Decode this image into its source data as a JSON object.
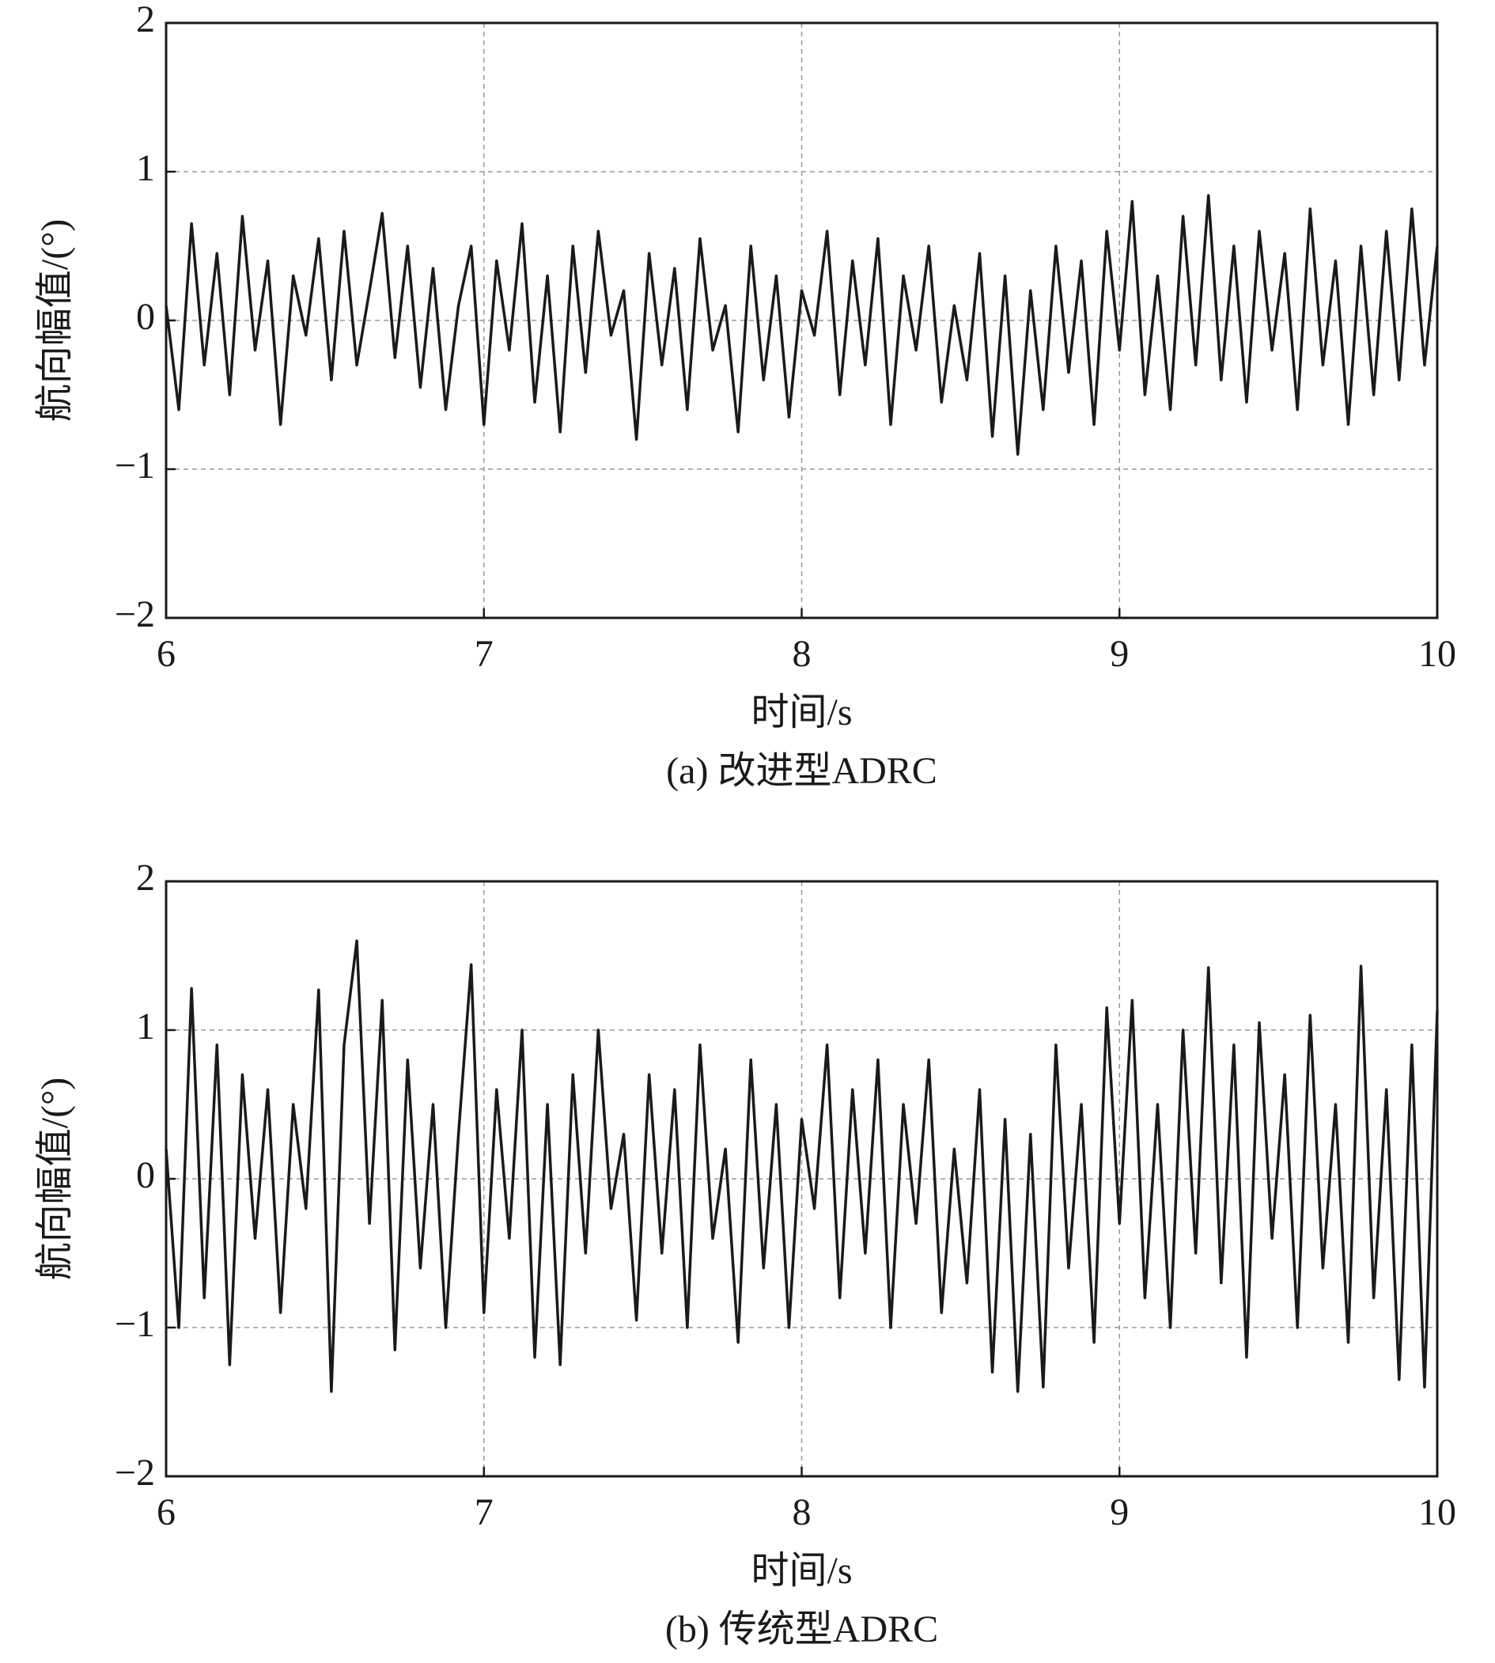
{
  "chart_data": [
    {
      "type": "line",
      "title": "(a) 改进型ADRC",
      "x_label": "时间/s",
      "y_label": "航向幅值/(°)",
      "color": "#1a1a1a",
      "grid": true,
      "xlim": [
        6,
        10
      ],
      "xticks": [
        6,
        7,
        8,
        9,
        10
      ],
      "ylim": [
        -2,
        2
      ],
      "yticks": [
        {
          "value": -2,
          "label": "−2"
        },
        {
          "value": -1,
          "label": "−1"
        },
        0,
        1,
        2
      ],
      "x": [
        6,
        6.04,
        6.08,
        6.12,
        6.16,
        6.2,
        6.24,
        6.28,
        6.32,
        6.36,
        6.4,
        6.44,
        6.48,
        6.52,
        6.56,
        6.6,
        6.64,
        6.68,
        6.72,
        6.76,
        6.8,
        6.84,
        6.88,
        6.92,
        6.96,
        7,
        7.04,
        7.08,
        7.12,
        7.16,
        7.2,
        7.24,
        7.28,
        7.32,
        7.36,
        7.4,
        7.44,
        7.48,
        7.52,
        7.56,
        7.6,
        7.64,
        7.68,
        7.72,
        7.76,
        7.8,
        7.84,
        7.88,
        7.92,
        7.96,
        8,
        8.04,
        8.08,
        8.12,
        8.16,
        8.2,
        8.24,
        8.28,
        8.32,
        8.36,
        8.4,
        8.44,
        8.48,
        8.52,
        8.56,
        8.6,
        8.64,
        8.68,
        8.72,
        8.76,
        8.8,
        8.84,
        8.88,
        8.92,
        8.96,
        9,
        9.04,
        9.08,
        9.12,
        9.16,
        9.2,
        9.24,
        9.28,
        9.32,
        9.36,
        9.4,
        9.44,
        9.48,
        9.52,
        9.56,
        9.6,
        9.64,
        9.68,
        9.72,
        9.76,
        9.8,
        9.84,
        9.88,
        9.92,
        9.96,
        10
      ],
      "values": [
        0.1,
        -0.6,
        0.65,
        -0.3,
        0.45,
        -0.5,
        0.7,
        -0.2,
        0.4,
        -0.7,
        0.3,
        -0.1,
        0.55,
        -0.4,
        0.6,
        -0.3,
        0.2,
        0.72,
        -0.25,
        0.5,
        -0.45,
        0.35,
        -0.6,
        0.1,
        0.5,
        -0.7,
        0.4,
        -0.2,
        0.65,
        -0.55,
        0.3,
        -0.75,
        0.5,
        -0.35,
        0.6,
        -0.1,
        0.2,
        -0.8,
        0.45,
        -0.3,
        0.35,
        -0.6,
        0.55,
        -0.2,
        0.1,
        -0.75,
        0.5,
        -0.4,
        0.3,
        -0.65,
        0.2,
        -0.1,
        0.6,
        -0.5,
        0.4,
        -0.3,
        0.55,
        -0.7,
        0.3,
        -0.2,
        0.5,
        -0.55,
        0.1,
        -0.4,
        0.45,
        -0.78,
        0.3,
        -0.9,
        0.2,
        -0.6,
        0.5,
        -0.35,
        0.4,
        -0.7,
        0.6,
        -0.2,
        0.8,
        -0.5,
        0.3,
        -0.6,
        0.7,
        -0.3,
        0.84,
        -0.4,
        0.5,
        -0.55,
        0.6,
        -0.2,
        0.45,
        -0.6,
        0.75,
        -0.3,
        0.4,
        -0.7,
        0.5,
        -0.5,
        0.6,
        -0.4,
        0.75,
        -0.3,
        0.5
      ]
    },
    {
      "type": "line",
      "title": "(b) 传统型ADRC",
      "x_label": "时间/s",
      "y_label": "航向幅值/(°)",
      "color": "#1a1a1a",
      "grid": true,
      "xlim": [
        6,
        10
      ],
      "xticks": [
        6,
        7,
        8,
        9,
        10
      ],
      "ylim": [
        -2,
        2
      ],
      "yticks": [
        {
          "value": -2,
          "label": "−2"
        },
        {
          "value": -1,
          "label": "−1"
        },
        0,
        1,
        2
      ],
      "x": [
        6,
        6.04,
        6.08,
        6.12,
        6.16,
        6.2,
        6.24,
        6.28,
        6.32,
        6.36,
        6.4,
        6.44,
        6.48,
        6.52,
        6.56,
        6.6,
        6.64,
        6.68,
        6.72,
        6.76,
        6.8,
        6.84,
        6.88,
        6.92,
        6.96,
        7,
        7.04,
        7.08,
        7.12,
        7.16,
        7.2,
        7.24,
        7.28,
        7.32,
        7.36,
        7.4,
        7.44,
        7.48,
        7.52,
        7.56,
        7.6,
        7.64,
        7.68,
        7.72,
        7.76,
        7.8,
        7.84,
        7.88,
        7.92,
        7.96,
        8,
        8.04,
        8.08,
        8.12,
        8.16,
        8.2,
        8.24,
        8.28,
        8.32,
        8.36,
        8.4,
        8.44,
        8.48,
        8.52,
        8.56,
        8.6,
        8.64,
        8.68,
        8.72,
        8.76,
        8.8,
        8.84,
        8.88,
        8.92,
        8.96,
        9,
        9.04,
        9.08,
        9.12,
        9.16,
        9.2,
        9.24,
        9.28,
        9.32,
        9.36,
        9.4,
        9.44,
        9.48,
        9.52,
        9.56,
        9.6,
        9.64,
        9.68,
        9.72,
        9.76,
        9.8,
        9.84,
        9.88,
        9.92,
        9.96,
        10
      ],
      "values": [
        0.2,
        -1.0,
        1.28,
        -0.8,
        0.9,
        -1.25,
        0.7,
        -0.4,
        0.6,
        -0.9,
        0.5,
        -0.2,
        1.27,
        -1.43,
        0.9,
        1.6,
        -0.3,
        1.2,
        -1.15,
        0.8,
        -0.6,
        0.5,
        -1.0,
        0.3,
        1.44,
        -0.9,
        0.6,
        -0.4,
        1.0,
        -1.2,
        0.5,
        -1.25,
        0.7,
        -0.5,
        1.0,
        -0.2,
        0.3,
        -0.95,
        0.7,
        -0.5,
        0.6,
        -1.0,
        0.9,
        -0.4,
        0.2,
        -1.1,
        0.8,
        -0.6,
        0.5,
        -1.0,
        0.4,
        -0.2,
        0.9,
        -0.8,
        0.6,
        -0.5,
        0.8,
        -1.0,
        0.5,
        -0.3,
        0.8,
        -0.9,
        0.2,
        -0.7,
        0.6,
        -1.3,
        0.4,
        -1.43,
        0.3,
        -1.4,
        0.9,
        -0.6,
        0.5,
        -1.1,
        1.15,
        -0.3,
        1.2,
        -0.8,
        0.5,
        -1.0,
        1.0,
        -0.5,
        1.42,
        -0.7,
        0.9,
        -1.2,
        1.05,
        -0.4,
        0.7,
        -1.0,
        1.1,
        -0.6,
        0.5,
        -1.1,
        1.43,
        -0.8,
        0.6,
        -1.35,
        0.9,
        -1.4,
        1.13
      ]
    }
  ]
}
